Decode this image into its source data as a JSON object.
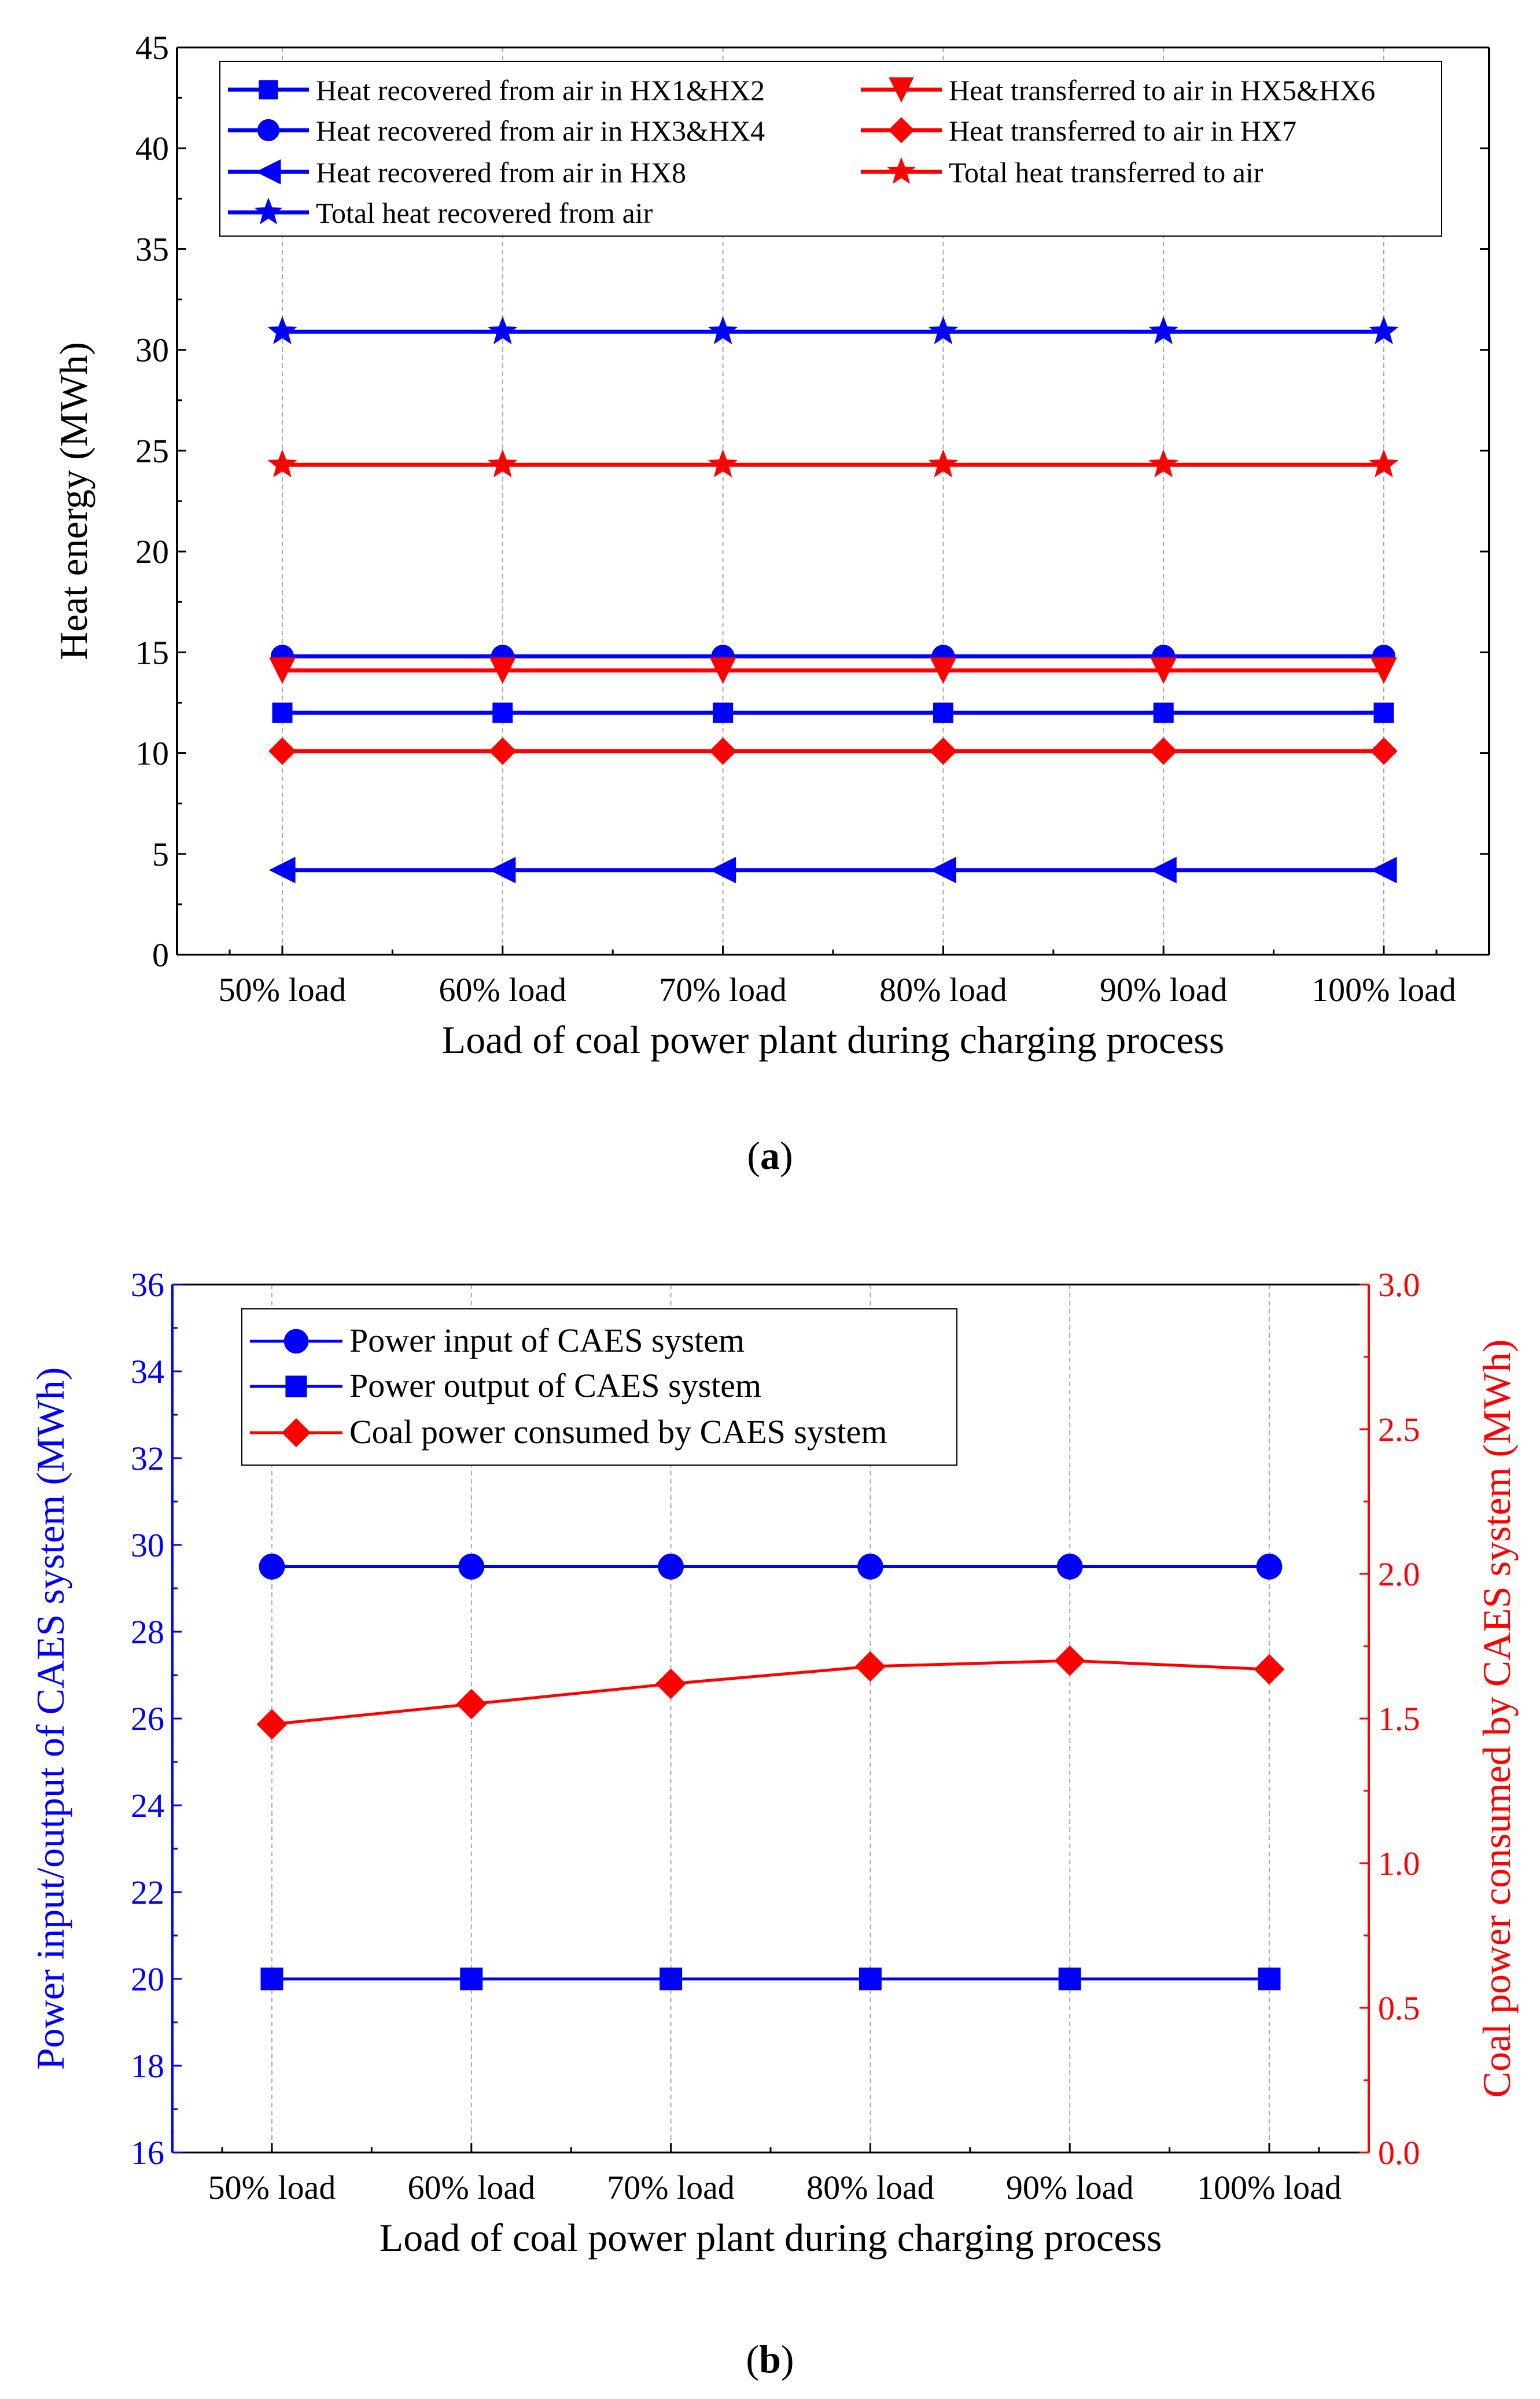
{
  "colors": {
    "blue": "#0000ff",
    "red": "#ff0000",
    "axis": "#000000",
    "grid": "#aaaaaa"
  },
  "chart_data": [
    {
      "type": "line",
      "panel_label": "a",
      "xlabel": "Load of coal power plant during charging process",
      "ylabel": "Heat energy (MWh)",
      "categories": [
        "50% load",
        "60% load",
        "70% load",
        "80% load",
        "90% load",
        "100% load"
      ],
      "ylim": [
        0,
        45
      ],
      "yticks": [
        "0",
        "5",
        "10",
        "15",
        "20",
        "25",
        "30",
        "35",
        "40",
        "45"
      ],
      "grid": "vertical dashed",
      "legend_position": "top",
      "series": [
        {
          "name": "Heat recovered from air in HX1&HX2",
          "color": "blue",
          "marker": "square",
          "values": [
            12.0,
            12.0,
            12.0,
            12.0,
            12.0,
            12.0
          ]
        },
        {
          "name": "Heat recovered from air in HX3&HX4",
          "color": "blue",
          "marker": "circle",
          "values": [
            14.8,
            14.8,
            14.8,
            14.8,
            14.8,
            14.8
          ]
        },
        {
          "name": "Heat recovered from air in HX8",
          "color": "blue",
          "marker": "triangle-left",
          "values": [
            4.2,
            4.2,
            4.2,
            4.2,
            4.2,
            4.2
          ]
        },
        {
          "name": "Total heat recovered from air",
          "color": "blue",
          "marker": "star",
          "values": [
            30.9,
            30.9,
            30.9,
            30.9,
            30.9,
            30.9
          ]
        },
        {
          "name": "Heat transferred to air in HX5&HX6",
          "color": "red",
          "marker": "triangle-down",
          "values": [
            14.1,
            14.1,
            14.1,
            14.1,
            14.1,
            14.1
          ]
        },
        {
          "name": "Heat transferred to air in HX7",
          "color": "red",
          "marker": "diamond",
          "values": [
            10.1,
            10.1,
            10.1,
            10.1,
            10.1,
            10.1
          ]
        },
        {
          "name": "Total heat transferred to air",
          "color": "red",
          "marker": "star",
          "values": [
            24.3,
            24.3,
            24.3,
            24.3,
            24.3,
            24.3
          ]
        }
      ]
    },
    {
      "type": "line",
      "panel_label": "b",
      "xlabel": "Load of coal power plant during charging process",
      "ylabel": "Power input/output of CAES system (MWh)",
      "y2label": "Coal power consumed by CAES system (MWh)",
      "categories": [
        "50% load",
        "60% load",
        "70% load",
        "80% load",
        "90% load",
        "100% load"
      ],
      "ylim": [
        16,
        36
      ],
      "yticks": [
        "16",
        "18",
        "20",
        "22",
        "24",
        "26",
        "28",
        "30",
        "32",
        "34",
        "36"
      ],
      "y2lim": [
        0,
        3.0
      ],
      "y2ticks": [
        "0.0",
        "0.5",
        "1.0",
        "1.5",
        "2.0",
        "2.5",
        "3.0"
      ],
      "grid": "vertical dashed",
      "legend_position": "top-left",
      "series": [
        {
          "name": "Power input of CAES system",
          "color": "blue",
          "marker": "circle",
          "axis": "left",
          "values": [
            29.5,
            29.5,
            29.5,
            29.5,
            29.5,
            29.5
          ]
        },
        {
          "name": "Power output of CAES system",
          "color": "blue",
          "marker": "square",
          "axis": "left",
          "values": [
            20.0,
            20.0,
            20.0,
            20.0,
            20.0,
            20.0
          ]
        },
        {
          "name": "Coal power consumed by CAES system",
          "color": "red",
          "marker": "diamond",
          "axis": "right",
          "values": [
            1.48,
            1.55,
            1.62,
            1.68,
            1.7,
            1.67
          ]
        }
      ]
    }
  ]
}
